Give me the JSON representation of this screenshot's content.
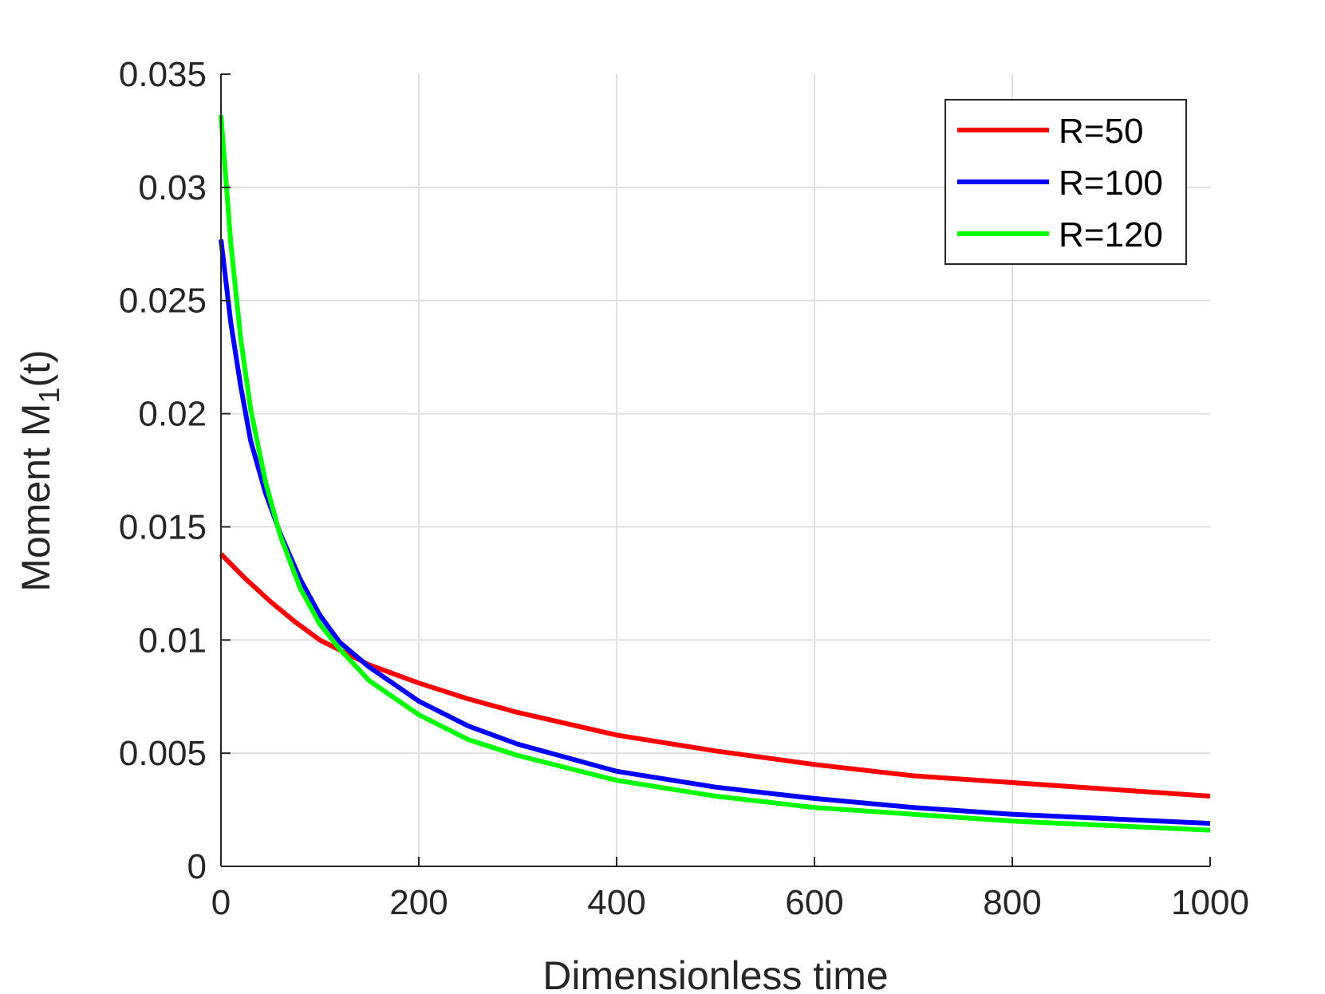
{
  "chart_data": {
    "type": "line",
    "title": "",
    "xlabel": "Dimensionless time",
    "ylabel": {
      "main": "Moment M",
      "subscript": "1",
      "suffix": "(t)"
    },
    "xlim": [
      0,
      1000
    ],
    "ylim": [
      0,
      0.035
    ],
    "xticks": [
      0,
      200,
      400,
      600,
      800,
      1000
    ],
    "xtick_labels": [
      "0",
      "200",
      "400",
      "600",
      "800",
      "1000"
    ],
    "yticks": [
      0,
      0.005,
      0.01,
      0.015,
      0.02,
      0.025,
      0.03,
      0.035
    ],
    "ytick_labels": [
      "0",
      "0.005",
      "0.01",
      "0.015",
      "0.02",
      "0.025",
      "0.03",
      "0.035"
    ],
    "grid": true,
    "legend_position": "top-right",
    "series": [
      {
        "name": "R=50",
        "color": "#ff0000",
        "x": [
          0,
          25,
          50,
          75,
          100,
          150,
          200,
          250,
          300,
          400,
          500,
          600,
          700,
          800,
          900,
          1000
        ],
        "y": [
          0.0138,
          0.0127,
          0.0117,
          0.0108,
          0.01,
          0.0089,
          0.0081,
          0.0074,
          0.0068,
          0.0058,
          0.0051,
          0.0045,
          0.004,
          0.0037,
          0.0034,
          0.0031
        ]
      },
      {
        "name": "R=100",
        "color": "#0000ff",
        "x": [
          0,
          10,
          20,
          30,
          45,
          60,
          80,
          100,
          120,
          150,
          200,
          250,
          300,
          400,
          500,
          600,
          700,
          800,
          900,
          1000
        ],
        "y": [
          0.0277,
          0.024,
          0.0212,
          0.0188,
          0.0165,
          0.0147,
          0.0127,
          0.0111,
          0.0099,
          0.0088,
          0.0073,
          0.0062,
          0.0054,
          0.0042,
          0.0035,
          0.003,
          0.0026,
          0.0023,
          0.0021,
          0.0019
        ]
      },
      {
        "name": "R=120",
        "color": "#00ff00",
        "x": [
          0,
          10,
          20,
          30,
          45,
          60,
          80,
          100,
          120,
          150,
          200,
          250,
          300,
          400,
          500,
          600,
          700,
          800,
          900,
          1000
        ],
        "y": [
          0.0332,
          0.0275,
          0.0233,
          0.0202,
          0.017,
          0.0146,
          0.0123,
          0.0107,
          0.0096,
          0.0082,
          0.0067,
          0.0056,
          0.0049,
          0.0038,
          0.0031,
          0.0026,
          0.0023,
          0.002,
          0.0018,
          0.0016
        ]
      }
    ]
  }
}
